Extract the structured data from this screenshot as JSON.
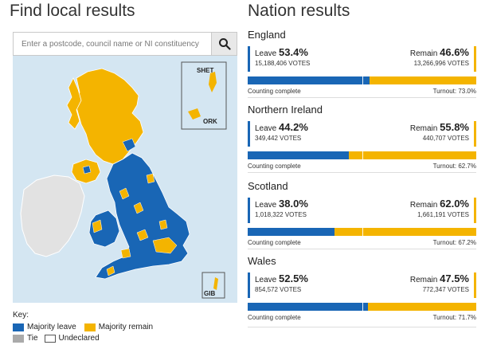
{
  "local": {
    "title": "Find local results",
    "search_placeholder": "Enter a postcode, council name or NI constituency",
    "inset_labels": {
      "shetland": "SHET",
      "orkney": "ORK",
      "gibraltar": "GIB"
    }
  },
  "key": {
    "title": "Key:",
    "leave_label": "Majority leave",
    "remain_label": "Majority remain",
    "tie_label": "Tie",
    "undeclared_label": "Undeclared"
  },
  "colors": {
    "leave": "#1966b5",
    "remain": "#f4b400",
    "tie": "#aaaaaa",
    "sea": "#d4e6f2",
    "ireland": "#e2e2e2"
  },
  "nation": {
    "title": "Nation results",
    "leave_word": "Leave",
    "remain_word": "Remain",
    "items": [
      {
        "name": "England",
        "leave_pct": "53.4%",
        "leave_votes": "15,188,406 VOTES",
        "remain_pct": "46.6%",
        "remain_votes": "13,266,996 VOTES",
        "status": "Counting complete",
        "turnout": "Turnout: 73.0%",
        "leave_share": 0.534
      },
      {
        "name": "Northern Ireland",
        "leave_pct": "44.2%",
        "leave_votes": "349,442 VOTES",
        "remain_pct": "55.8%",
        "remain_votes": "440,707 VOTES",
        "status": "Counting complete",
        "turnout": "Turnout: 62.7%",
        "leave_share": 0.442
      },
      {
        "name": "Scotland",
        "leave_pct": "38.0%",
        "leave_votes": "1,018,322 VOTES",
        "remain_pct": "62.0%",
        "remain_votes": "1,661,191 VOTES",
        "status": "Counting complete",
        "turnout": "Turnout: 67.2%",
        "leave_share": 0.38
      },
      {
        "name": "Wales",
        "leave_pct": "52.5%",
        "leave_votes": "854,572 VOTES",
        "remain_pct": "47.5%",
        "remain_votes": "772,347 VOTES",
        "status": "Counting complete",
        "turnout": "Turnout: 71.7%",
        "leave_share": 0.525
      }
    ]
  }
}
